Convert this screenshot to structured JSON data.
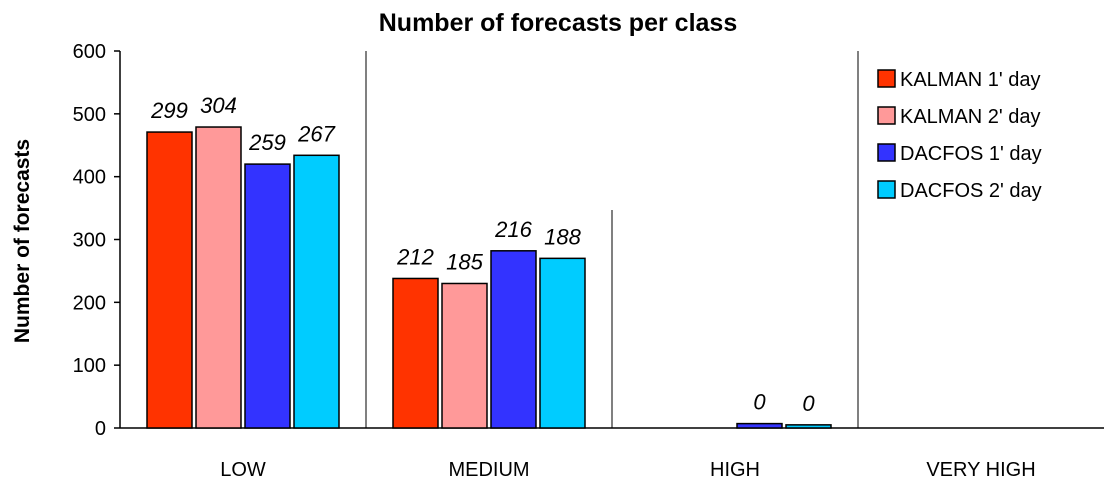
{
  "chart_data": {
    "type": "bar",
    "title": "Number of forecasts per class",
    "xlabel": "",
    "ylabel": "Number of forecasts",
    "ylim": [
      0,
      600
    ],
    "yticks": [
      0,
      100,
      200,
      300,
      400,
      500,
      600
    ],
    "categories": [
      "LOW",
      "MEDIUM",
      "HIGH",
      "VERY HIGH"
    ],
    "legend_position": "top-right",
    "grid": false,
    "series": [
      {
        "name": "KALMAN 1' day",
        "color": "#ff3300",
        "values": [
          471,
          238,
          0,
          0
        ],
        "labels": [
          "299",
          "212",
          "",
          ""
        ]
      },
      {
        "name": "KALMAN 2' day",
        "color": "#ff9999",
        "values": [
          479,
          230,
          0,
          0
        ],
        "labels": [
          "304",
          "185",
          "",
          ""
        ]
      },
      {
        "name": "DACFOS 1' day",
        "color": "#3333ff",
        "values": [
          420,
          282,
          7,
          0
        ],
        "labels": [
          "259",
          "216",
          "0",
          ""
        ]
      },
      {
        "name": "DACFOS 2' day",
        "color": "#00ccff",
        "values": [
          434,
          270,
          5,
          0
        ],
        "labels": [
          "267",
          "188",
          "0",
          ""
        ]
      }
    ]
  }
}
